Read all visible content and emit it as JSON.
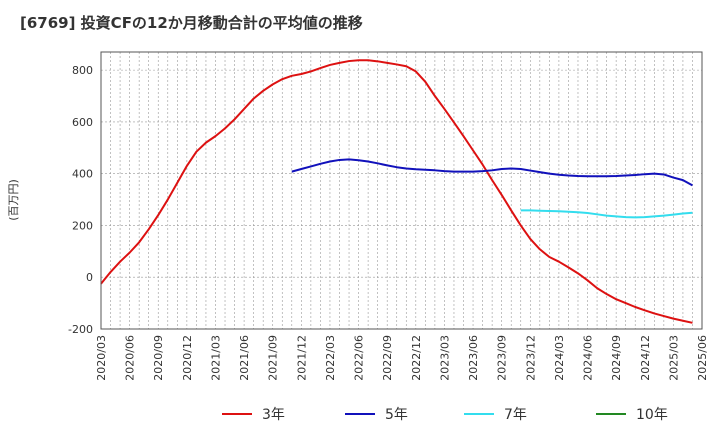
{
  "chart_data": {
    "type": "line",
    "title": "[6769]  投資CFの12か月移動合計の平均値の推移",
    "ylabel": "(百万円)",
    "ylim": [
      -200,
      870
    ],
    "yticks": [
      -200,
      0,
      200,
      400,
      600,
      800
    ],
    "x_tick_labels": [
      "2020/03",
      "2020/06",
      "2020/09",
      "2020/12",
      "2021/03",
      "2021/06",
      "2021/09",
      "2021/12",
      "2022/03",
      "2022/06",
      "2022/09",
      "2022/12",
      "2023/03",
      "2023/06",
      "2023/09",
      "2023/12",
      "2024/03",
      "2024/06",
      "2024/09",
      "2024/12",
      "2025/03",
      "2025/06"
    ],
    "grid": true,
    "legend_position": "bottom",
    "series": [
      {
        "name": "3年",
        "color": "#dd1111",
        "points": [
          [
            "2020/03",
            -25
          ],
          [
            "2020/04",
            20
          ],
          [
            "2020/05",
            60
          ],
          [
            "2020/06",
            95
          ],
          [
            "2020/07",
            135
          ],
          [
            "2020/08",
            185
          ],
          [
            "2020/09",
            240
          ],
          [
            "2020/10",
            300
          ],
          [
            "2020/11",
            365
          ],
          [
            "2020/12",
            430
          ],
          [
            "2021/01",
            485
          ],
          [
            "2021/02",
            520
          ],
          [
            "2021/03",
            545
          ],
          [
            "2021/04",
            575
          ],
          [
            "2021/05",
            610
          ],
          [
            "2021/06",
            650
          ],
          [
            "2021/07",
            690
          ],
          [
            "2021/08",
            720
          ],
          [
            "2021/09",
            745
          ],
          [
            "2021/10",
            765
          ],
          [
            "2021/11",
            778
          ],
          [
            "2021/12",
            785
          ],
          [
            "2022/01",
            795
          ],
          [
            "2022/02",
            808
          ],
          [
            "2022/03",
            820
          ],
          [
            "2022/04",
            828
          ],
          [
            "2022/05",
            835
          ],
          [
            "2022/06",
            838
          ],
          [
            "2022/07",
            838
          ],
          [
            "2022/08",
            834
          ],
          [
            "2022/09",
            828
          ],
          [
            "2022/10",
            822
          ],
          [
            "2022/11",
            815
          ],
          [
            "2022/12",
            795
          ],
          [
            "2023/01",
            755
          ],
          [
            "2023/02",
            700
          ],
          [
            "2023/03",
            650
          ],
          [
            "2023/04",
            598
          ],
          [
            "2023/05",
            545
          ],
          [
            "2023/06",
            490
          ],
          [
            "2023/07",
            435
          ],
          [
            "2023/08",
            375
          ],
          [
            "2023/09",
            318
          ],
          [
            "2023/10",
            258
          ],
          [
            "2023/11",
            200
          ],
          [
            "2023/12",
            148
          ],
          [
            "2024/01",
            108
          ],
          [
            "2024/02",
            78
          ],
          [
            "2024/03",
            60
          ],
          [
            "2024/04",
            38
          ],
          [
            "2024/05",
            15
          ],
          [
            "2024/06",
            -12
          ],
          [
            "2024/07",
            -42
          ],
          [
            "2024/08",
            -65
          ],
          [
            "2024/09",
            -85
          ],
          [
            "2024/10",
            -100
          ],
          [
            "2024/11",
            -115
          ],
          [
            "2024/12",
            -128
          ],
          [
            "2025/01",
            -140
          ],
          [
            "2025/02",
            -150
          ],
          [
            "2025/03",
            -160
          ],
          [
            "2025/04",
            -168
          ],
          [
            "2025/05",
            -176
          ]
        ]
      },
      {
        "name": "5年",
        "color": "#1111bb",
        "points": [
          [
            "2021/11",
            408
          ],
          [
            "2021/12",
            418
          ],
          [
            "2022/01",
            428
          ],
          [
            "2022/02",
            438
          ],
          [
            "2022/03",
            447
          ],
          [
            "2022/04",
            453
          ],
          [
            "2022/05",
            455
          ],
          [
            "2022/06",
            452
          ],
          [
            "2022/07",
            447
          ],
          [
            "2022/08",
            440
          ],
          [
            "2022/09",
            432
          ],
          [
            "2022/10",
            425
          ],
          [
            "2022/11",
            420
          ],
          [
            "2022/12",
            417
          ],
          [
            "2023/01",
            415
          ],
          [
            "2023/02",
            413
          ],
          [
            "2023/03",
            410
          ],
          [
            "2023/04",
            408
          ],
          [
            "2023/05",
            408
          ],
          [
            "2023/06",
            408
          ],
          [
            "2023/07",
            410
          ],
          [
            "2023/08",
            413
          ],
          [
            "2023/09",
            418
          ],
          [
            "2023/10",
            420
          ],
          [
            "2023/11",
            418
          ],
          [
            "2023/12",
            412
          ],
          [
            "2024/01",
            406
          ],
          [
            "2024/02",
            400
          ],
          [
            "2024/03",
            396
          ],
          [
            "2024/04",
            393
          ],
          [
            "2024/05",
            391
          ],
          [
            "2024/06",
            390
          ],
          [
            "2024/07",
            390
          ],
          [
            "2024/08",
            390
          ],
          [
            "2024/09",
            391
          ],
          [
            "2024/10",
            393
          ],
          [
            "2024/11",
            395
          ],
          [
            "2024/12",
            398
          ],
          [
            "2025/01",
            400
          ],
          [
            "2025/02",
            397
          ],
          [
            "2025/03",
            385
          ],
          [
            "2025/04",
            375
          ],
          [
            "2025/05",
            355
          ]
        ]
      },
      {
        "name": "7年",
        "color": "#33ddee",
        "points": [
          [
            "2023/11",
            258
          ],
          [
            "2023/12",
            258
          ],
          [
            "2024/01",
            257
          ],
          [
            "2024/02",
            256
          ],
          [
            "2024/03",
            255
          ],
          [
            "2024/04",
            253
          ],
          [
            "2024/05",
            251
          ],
          [
            "2024/06",
            248
          ],
          [
            "2024/07",
            243
          ],
          [
            "2024/08",
            238
          ],
          [
            "2024/09",
            235
          ],
          [
            "2024/10",
            232
          ],
          [
            "2024/11",
            231
          ],
          [
            "2024/12",
            232
          ],
          [
            "2025/01",
            235
          ],
          [
            "2025/02",
            238
          ],
          [
            "2025/03",
            242
          ],
          [
            "2025/04",
            246
          ],
          [
            "2025/05",
            249
          ]
        ]
      },
      {
        "name": "10年",
        "color": "#228822",
        "points": []
      }
    ]
  }
}
